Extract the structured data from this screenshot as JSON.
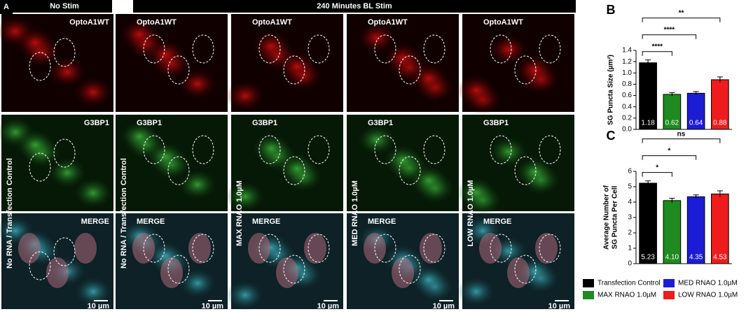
{
  "panel_a": {
    "label": "A",
    "groups": [
      "No Stim",
      "240 Minutes BL Stim"
    ],
    "columns": [
      {
        "condition": "No RNA / Transfection Control",
        "channels": [
          "OptoA1WT",
          "G3BP1",
          "MERGE"
        ],
        "scale_bar": "10 µm"
      },
      {
        "condition": "No RNA / Transfection Control",
        "channels": [
          "OptoA1WT",
          "G3BP1",
          "MERGE"
        ],
        "scale_bar": "10 µm"
      },
      {
        "condition": "MAX RNAO 1.0µM",
        "channels": [
          "OptoA1WT",
          "G3BP1",
          "MERGE"
        ],
        "scale_bar": "10 µm"
      },
      {
        "condition": "MED RNAO 1.0µM",
        "channels": [
          "OptoA1WT",
          "G3BP1",
          "MERGE"
        ],
        "scale_bar": "10 µm"
      },
      {
        "condition": "LOW RNAO 1.0µM",
        "channels": [
          "OptoA1WT",
          "G3BP1",
          "MERGE"
        ],
        "scale_bar": "10 µm"
      }
    ]
  },
  "chart_data": [
    {
      "type": "bar",
      "label": "B",
      "ylabel": [
        "SG Puncta Size (µm²)"
      ],
      "categories": [
        "Transfection Control",
        "MAX RNAO 1.0µM",
        "MED RNAO 1.0µM",
        "LOW RNAO 1.0µM"
      ],
      "colors": [
        "#000000",
        "#1f8a1f",
        "#1c1cd6",
        "#ee1c1c"
      ],
      "values": [
        1.18,
        0.62,
        0.64,
        0.88
      ],
      "errors": [
        0.05,
        0.03,
        0.03,
        0.05
      ],
      "ylim": [
        0,
        1.4
      ],
      "yticks": [
        {
          "value": 0,
          "label": "0.0"
        },
        0.2,
        0.4,
        0.6,
        0.8,
        {
          "value": 1,
          "label": "1.0"
        },
        1.2,
        1.4
      ],
      "significance": [
        "****",
        "****",
        "**"
      ]
    },
    {
      "type": "bar",
      "label": "C",
      "ylabel": [
        "Average Number of",
        "SG Puncta Per Cell"
      ],
      "categories": [
        "Transfection Control",
        "MAX RNAO 1.0µM",
        "MED RNAO 1.0µM",
        "LOW RNAO 1.0µM"
      ],
      "colors": [
        "#000000",
        "#1f8a1f",
        "#1c1cd6",
        "#ee1c1c"
      ],
      "values": [
        5.23,
        4.1,
        4.35,
        4.53
      ],
      "value_labels": [
        "5.23",
        "4.10",
        "4.35",
        "4.53"
      ],
      "errors": [
        0.15,
        0.15,
        0.12,
        0.2
      ],
      "ylim": [
        0,
        6
      ],
      "yticks": [
        0,
        1,
        2,
        3,
        4,
        5,
        6
      ],
      "significance": [
        "*",
        "*",
        "ns"
      ]
    }
  ]
}
